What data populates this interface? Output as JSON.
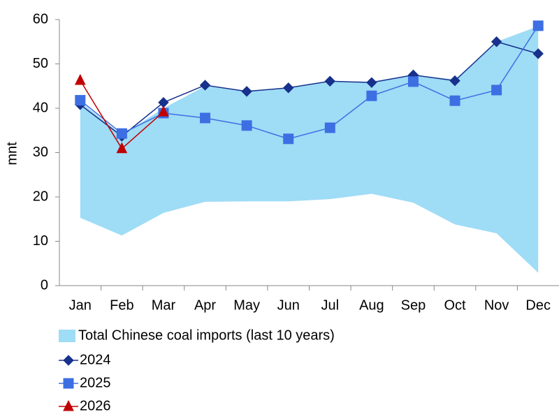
{
  "chart_data": {
    "type": "line",
    "y_label": "mnt",
    "categories": [
      "Jan",
      "Feb",
      "Mar",
      "Apr",
      "May",
      "Jun",
      "Jul",
      "Aug",
      "Sep",
      "Oct",
      "Nov",
      "Dec"
    ],
    "ylim": [
      0,
      60
    ],
    "yticks": [
      0,
      10,
      20,
      30,
      40,
      50,
      60
    ],
    "grid": false,
    "legend": "bottom",
    "series": [
      {
        "name": "Total Chinese coal imports (last 10 years)",
        "type": "area",
        "color": "#9fdcf6",
        "high": [
          41.5,
          34,
          40,
          45,
          44,
          44.5,
          46,
          46,
          47.5,
          46.5,
          55,
          58.5
        ],
        "low": [
          15.3,
          11.3,
          16.4,
          18.9,
          19,
          19,
          19.5,
          20.7,
          18.7,
          13.8,
          11.8,
          2.9
        ]
      },
      {
        "name": "2024",
        "color": "#17318c",
        "marker": "diamond",
        "values": [
          40.8,
          33.7,
          41.3,
          45.2,
          43.8,
          44.6,
          46.1,
          45.8,
          47.5,
          46.2,
          55,
          52.3
        ]
      },
      {
        "name": "2025",
        "color": "#3d6fe3",
        "marker": "square",
        "values": [
          41.8,
          34.3,
          38.9,
          37.8,
          36.1,
          33.1,
          35.6,
          42.8,
          46,
          41.7,
          44.1,
          58.6
        ]
      },
      {
        "name": "2026",
        "color": "#c00000",
        "marker": "triangle",
        "values": [
          46.3,
          30.9,
          39.2,
          null,
          null,
          null,
          null,
          null,
          null,
          null,
          null,
          null
        ]
      }
    ]
  }
}
